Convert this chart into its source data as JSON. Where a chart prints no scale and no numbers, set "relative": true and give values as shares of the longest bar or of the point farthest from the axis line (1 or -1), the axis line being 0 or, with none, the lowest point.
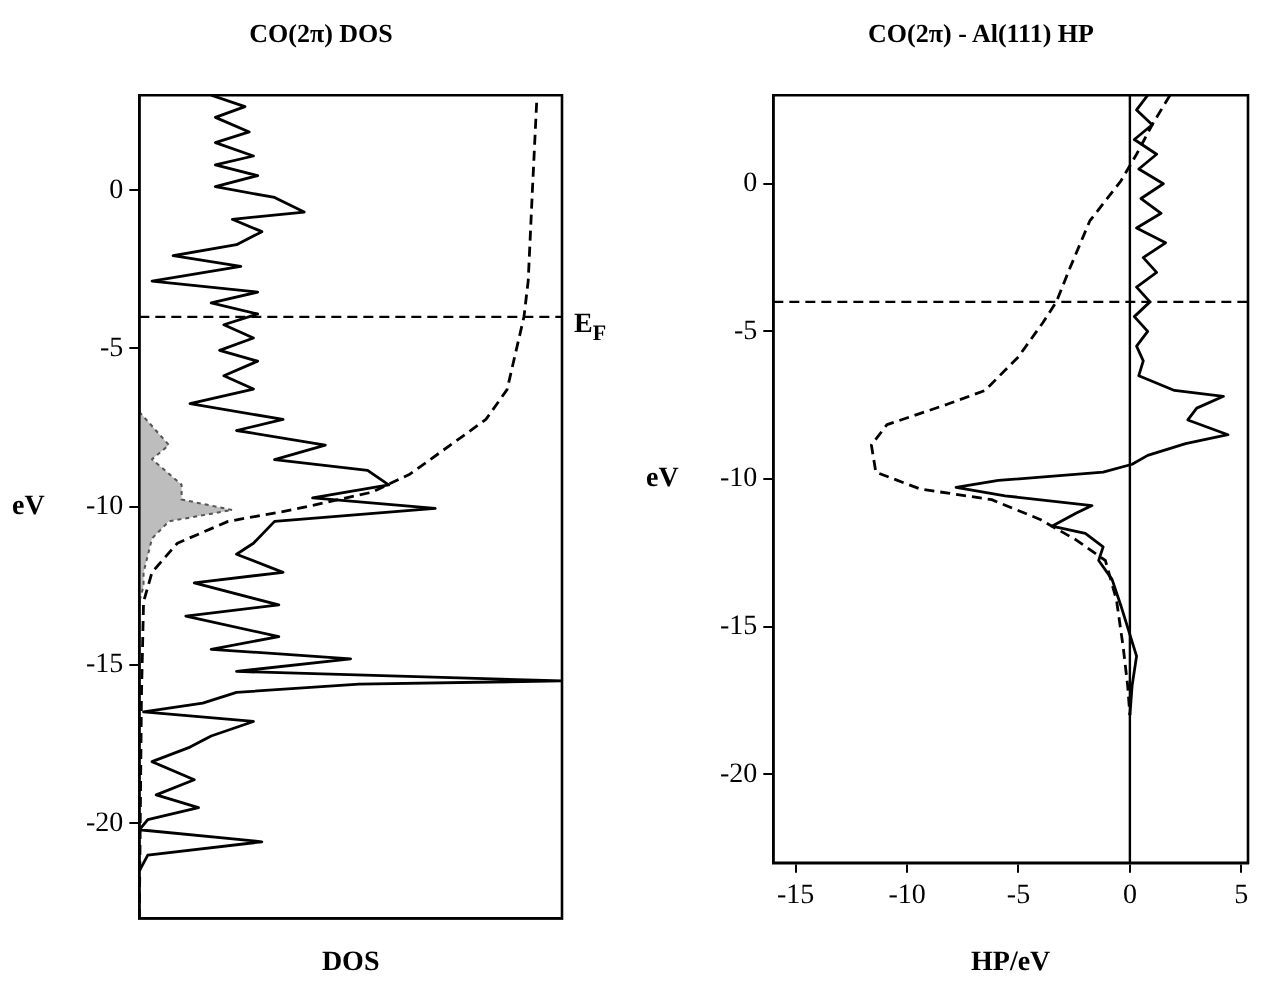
{
  "chart_data": [
    {
      "type": "line",
      "title": "CO(2π) DOS",
      "xlabel": "DOS",
      "ylabel": "eV",
      "orientation": "horizontal",
      "relative": true,
      "tick_labels": "y",
      "legend": false,
      "grid": false,
      "marker": "none",
      "ylim": [
        -23,
        3
      ],
      "yticks": [
        -20,
        -15,
        -10,
        -5,
        0
      ],
      "ref_lines": [
        {
          "axis": "y",
          "value": -4,
          "label": "E$_{F}$",
          "line_style": "dashed",
          "color": "#000000"
        }
      ],
      "series": [
        {
          "type": "line",
          "color": "#000000",
          "line_style": "solid",
          "x": [
            3.0,
            2.64,
            2.3,
            1.84,
            1.5,
            1.08,
            0.8,
            0.46,
            0.11,
            -0.23,
            -0.69,
            -0.92,
            -1.31,
            -1.72,
            -2.07,
            -2.41,
            -2.87,
            -3.22,
            -3.56,
            -3.91,
            -4.25,
            -4.67,
            -5.06,
            -5.4,
            -5.86,
            -6.28,
            -6.74,
            -7.24,
            -7.59,
            -8.05,
            -8.51,
            -8.85,
            -9.31,
            -9.72,
            -10.05,
            -10.46,
            -11.15,
            -11.5,
            -12.07,
            -12.4,
            -13.1,
            -13.45,
            -14.1,
            -14.5,
            -14.8,
            -15.2,
            -15.5,
            -15.6,
            -15.86,
            -16.2,
            -16.48,
            -16.78,
            -17.24,
            -17.59,
            -18.05,
            -18.62,
            -19.1,
            -19.5,
            -19.88,
            -20.2,
            -20.58,
            -21.0,
            -21.5
          ],
          "values": [
            0.17,
            0.25,
            0.18,
            0.26,
            0.18,
            0.27,
            0.18,
            0.28,
            0.18,
            0.32,
            0.39,
            0.22,
            0.29,
            0.23,
            0.08,
            0.24,
            0.03,
            0.28,
            0.17,
            0.28,
            0.2,
            0.27,
            0.19,
            0.28,
            0.2,
            0.27,
            0.12,
            0.34,
            0.23,
            0.44,
            0.32,
            0.54,
            0.59,
            0.41,
            0.7,
            0.32,
            0.27,
            0.23,
            0.34,
            0.13,
            0.33,
            0.11,
            0.33,
            0.17,
            0.5,
            0.23,
            1.0,
            0.52,
            0.23,
            0.15,
            0.01,
            0.27,
            0.17,
            0.12,
            0.03,
            0.13,
            0.04,
            0.14,
            0.02,
            0.0,
            0.29,
            0.02,
            0.0
          ]
        },
        {
          "type": "line",
          "color": "#000000",
          "line_style": "dashed",
          "x": [
            2.76,
            0.0,
            -2.87,
            -4.0,
            -6.3,
            -7.24,
            -8.3,
            -8.97,
            -9.54,
            -10.1,
            -10.46,
            -11.15,
            -12.07,
            -13.0,
            -16.0,
            -23.0
          ],
          "values": [
            0.94,
            0.93,
            0.92,
            0.91,
            0.87,
            0.82,
            0.71,
            0.64,
            0.55,
            0.36,
            0.21,
            0.09,
            0.03,
            0.01,
            0.005,
            0.0
          ]
        },
        {
          "type": "area",
          "color": "#bdbdbd",
          "line_style": "dotted",
          "x": [
            -7.0,
            -8.05,
            -8.5,
            -9.3,
            -9.77,
            -10.1,
            -10.46,
            -11.0,
            -12.07,
            -12.5,
            -13.0
          ],
          "values": [
            0.0,
            0.07,
            0.03,
            0.1,
            0.1,
            0.22,
            0.07,
            0.03,
            0.01,
            0.01,
            0.0
          ]
        }
      ]
    },
    {
      "type": "line",
      "title": "CO(2π) - Al(111) HP",
      "xlabel": "HP/eV",
      "ylabel": "eV",
      "orientation": "horizontal",
      "legend": false,
      "grid": false,
      "marker": "none",
      "xlim": [
        -16,
        5.3
      ],
      "xticks": [
        -15,
        -10,
        -5,
        0,
        5
      ],
      "ylim": [
        -23,
        3
      ],
      "yticks": [
        -20,
        -15,
        -10,
        -5,
        0
      ],
      "ref_lines": [
        {
          "axis": "y",
          "value": -4,
          "line_style": "dashed",
          "color": "#000000"
        },
        {
          "axis": "x",
          "value": 0,
          "line_style": "solid",
          "color": "#000000"
        }
      ],
      "series": [
        {
          "type": "line",
          "color": "#000000",
          "line_style": "dashed",
          "x": [
            3.0,
            2.0,
            1.0,
            0.1,
            -1.26,
            -2.87,
            -4.0,
            -4.7,
            -5.86,
            -7.0,
            -7.47,
            -8.16,
            -8.85,
            -9.77,
            -10.34,
            -10.7,
            -11.38,
            -12.07,
            -12.76,
            -14.1,
            -15.7,
            -17.0,
            -18.0
          ],
          "values": [
            1.8,
            1.0,
            0.3,
            -0.4,
            -1.8,
            -2.7,
            -3.3,
            -3.9,
            -5.0,
            -6.5,
            -8.2,
            -10.9,
            -11.6,
            -11.4,
            -9.4,
            -6.2,
            -4.0,
            -2.4,
            -1.1,
            -0.6,
            -0.3,
            -0.1,
            0.0
          ]
        },
        {
          "type": "line",
          "color": "#000000",
          "line_style": "solid",
          "x": [
            3.0,
            2.5,
            2.0,
            1.5,
            1.0,
            0.5,
            0.0,
            -0.5,
            -1.0,
            -1.5,
            -2.0,
            -2.5,
            -3.0,
            -3.5,
            -4.0,
            -4.5,
            -5.0,
            -5.5,
            -6.0,
            -6.5,
            -7.0,
            -7.2,
            -7.6,
            -8.0,
            -8.5,
            -8.8,
            -9.2,
            -9.5,
            -9.77,
            -10.05,
            -10.28,
            -10.57,
            -10.9,
            -11.15,
            -11.6,
            -11.84,
            -12.3,
            -12.76,
            -13.4,
            -14.3,
            -16.0,
            -17.0,
            -18.0
          ],
          "values": [
            0.8,
            0.3,
            1.0,
            0.2,
            1.2,
            0.4,
            1.5,
            0.5,
            1.4,
            0.3,
            1.6,
            0.6,
            1.2,
            0.3,
            0.9,
            0.2,
            0.8,
            0.3,
            0.6,
            0.4,
            2.0,
            4.2,
            3.0,
            2.6,
            4.4,
            2.5,
            0.8,
            0.1,
            -1.2,
            -5.9,
            -7.8,
            -5.6,
            -1.7,
            -2.4,
            -3.5,
            -2.0,
            -1.2,
            -1.4,
            -0.8,
            -0.4,
            0.3,
            0.1,
            0.0
          ]
        }
      ]
    }
  ]
}
